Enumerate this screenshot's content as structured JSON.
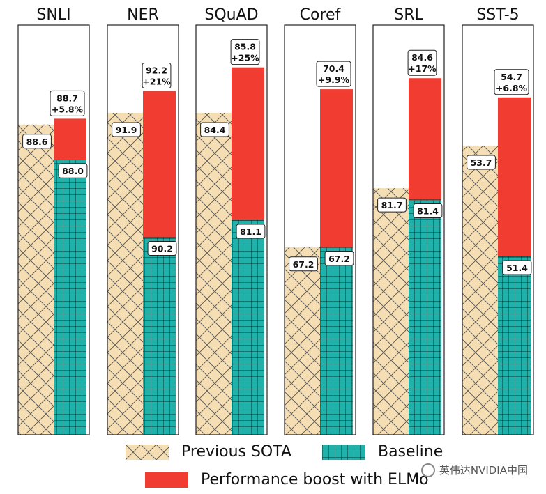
{
  "chart_data": {
    "type": "bar",
    "categories": [
      "SNLI",
      "NER",
      "SQuAD",
      "Coref",
      "SRL",
      "SST-5"
    ],
    "series": [
      {
        "name": "Previous SOTA",
        "values": [
          88.6,
          91.9,
          84.4,
          67.2,
          81.7,
          53.7
        ]
      },
      {
        "name": "Baseline",
        "values": [
          88.0,
          90.2,
          81.1,
          67.2,
          81.4,
          51.4
        ]
      },
      {
        "name": "Performance boost with ELMo",
        "values": [
          88.7,
          92.2,
          85.8,
          70.4,
          84.6,
          54.7
        ]
      }
    ],
    "labels": {
      "previous": [
        "88.6",
        "91.9",
        "84.4",
        "67.2",
        "81.7",
        "53.7"
      ],
      "baseline": [
        "88.0",
        "90.2",
        "81.1",
        "67.2",
        "81.4",
        "51.4"
      ],
      "elmo": [
        "88.7",
        "92.2",
        "85.8",
        "70.4",
        "84.6",
        "54.7"
      ],
      "boost": [
        "+5.8%",
        "+21%",
        "+25%",
        "+9.9%",
        "+17%",
        "+6.8%"
      ]
    },
    "panel_ranges": [
      [
        83.3,
        90.3
      ],
      [
        87.5,
        93.1
      ],
      [
        74.5,
        87.1
      ],
      [
        63.4,
        71.7
      ],
      [
        75.2,
        86.0
      ],
      [
        47.7,
        56.2
      ]
    ],
    "colors": {
      "previous_fill": "#f5deb3",
      "previous_hatch": "#555555",
      "baseline_fill": "#20b2aa",
      "baseline_hatch": "#003a36",
      "elmo": "#f03c31"
    },
    "legend": {
      "placement": "bottom"
    }
  },
  "watermark": "英伟达NVIDIA中国"
}
